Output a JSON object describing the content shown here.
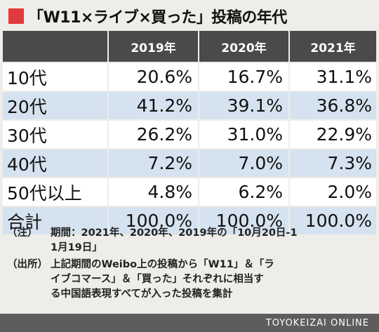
{
  "title": "「W11×ライブ×買った」投稿の年代",
  "table": {
    "headers": [
      "",
      "2019年",
      "2020年",
      "2021年"
    ],
    "rows": [
      {
        "label": "10代",
        "values": [
          "20.6%",
          "16.7%",
          "31.1%"
        ]
      },
      {
        "label": "20代",
        "values": [
          "41.2%",
          "39.1%",
          "36.8%"
        ]
      },
      {
        "label": "30代",
        "values": [
          "26.2%",
          "31.0%",
          "22.9%"
        ]
      },
      {
        "label": "40代",
        "values": [
          "7.2%",
          "7.0%",
          "7.3%"
        ]
      },
      {
        "label": "50代以上",
        "values": [
          "4.8%",
          "6.2%",
          "2.0%"
        ]
      },
      {
        "label": "合計",
        "values": [
          "100.0%",
          "100.0%",
          "100.0%"
        ]
      }
    ]
  },
  "notes": [
    {
      "label": "（注）",
      "lines": [
        "期間：2021年、2020年、2019年の「10月20日-1",
        "1月19日」"
      ]
    },
    {
      "label": "（出所）",
      "lines": [
        "上記期間のWeibo上の投稿から「W11」＆「ラ",
        "イブコマース」＆「買った」それぞれに相当す",
        "る中国語表現すべてが入った投稿を集計"
      ]
    }
  ],
  "footer": "TOYOKEIZAI ONLINE",
  "colors": {
    "accent": "#e03a3e",
    "header_bg": "#4a4a4a",
    "row_alt": "#d5e2ef",
    "row": "#ffffff"
  }
}
